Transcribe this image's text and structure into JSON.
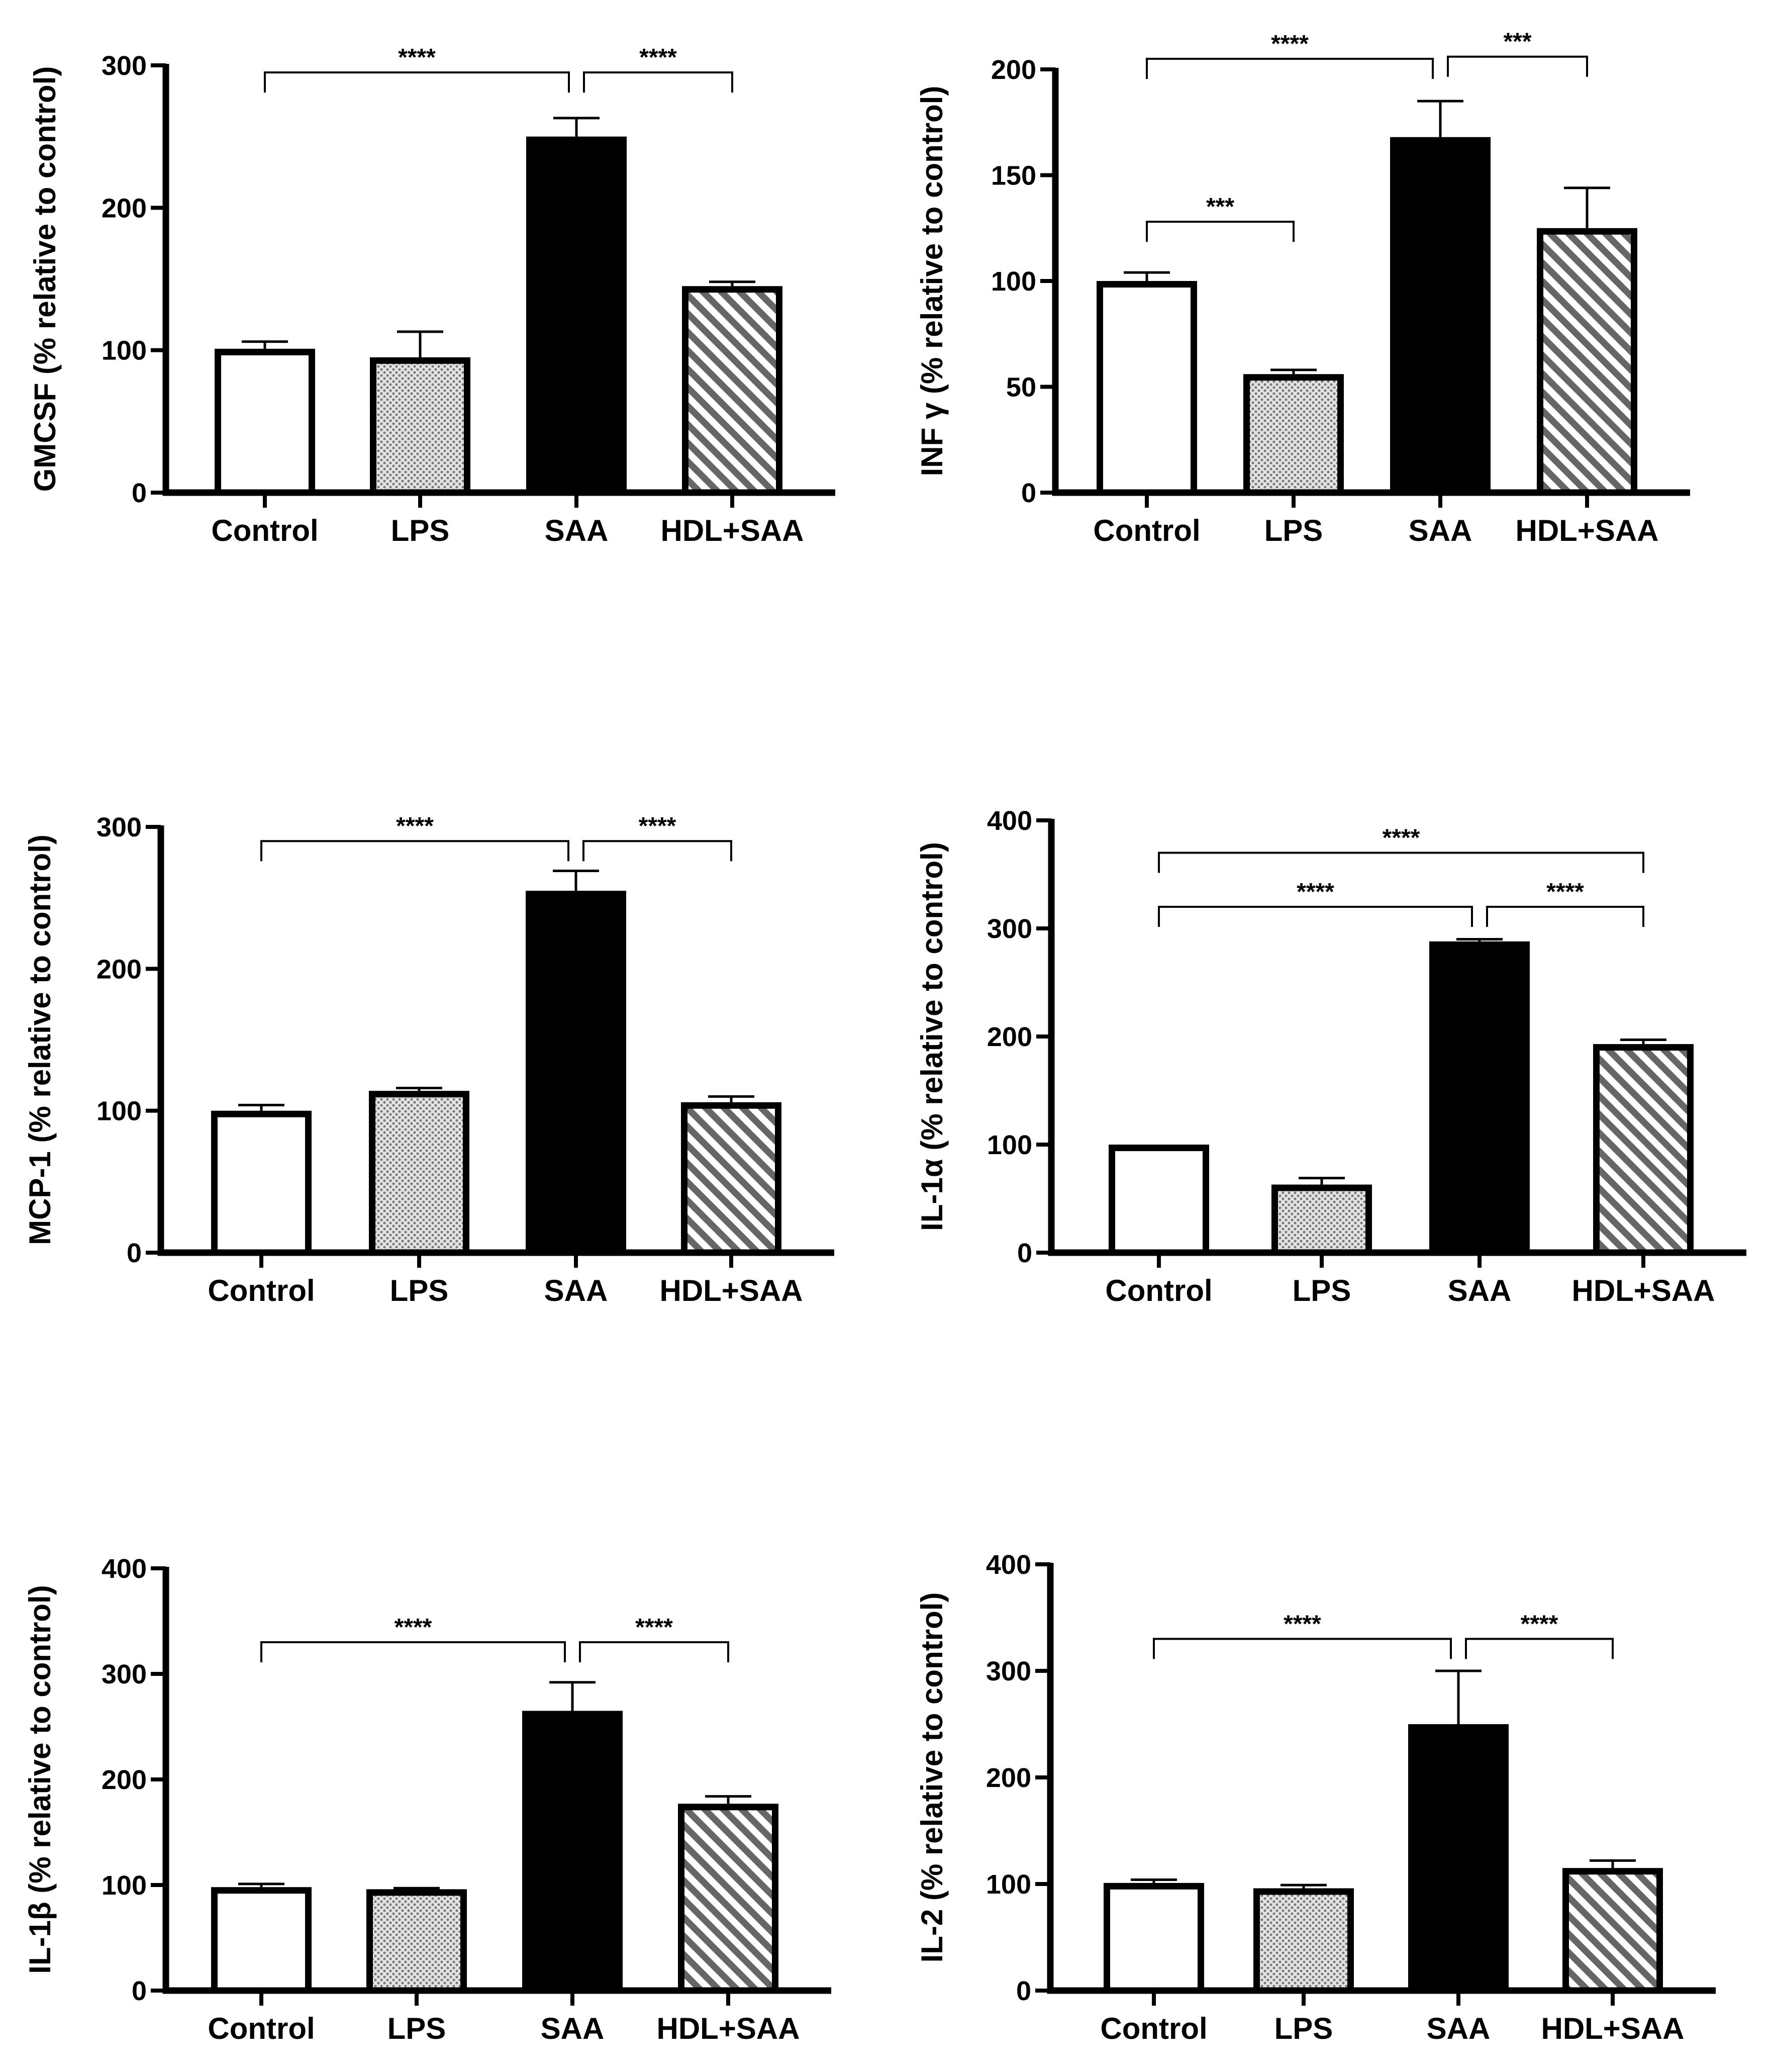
{
  "chart_data": [
    {
      "type": "bar",
      "ylabel": "GMCSF (% relative to control)",
      "ylim": [
        0,
        300
      ],
      "yticks": [
        0,
        100,
        200,
        300
      ],
      "categories": [
        "Control",
        "LPS",
        "SAA",
        "HDL+SAA"
      ],
      "values": [
        101,
        95,
        250,
        145
      ],
      "errors": [
        5,
        18,
        13,
        3
      ],
      "fills": [
        "white",
        "dots",
        "solid",
        "hatch"
      ],
      "significance": [
        {
          "from": 0,
          "to": 2,
          "label": "****",
          "y": 295
        },
        {
          "from": 2,
          "to": 3,
          "label": "****",
          "y": 295
        }
      ]
    },
    {
      "type": "bar",
      "ylabel": "INF γ (% relative to control)",
      "ylim": [
        0,
        200
      ],
      "yticks": [
        0,
        50,
        100,
        150,
        200
      ],
      "categories": [
        "Control",
        "LPS",
        "SAA",
        "HDL+SAA"
      ],
      "values": [
        100,
        56,
        168,
        125
      ],
      "errors": [
        4,
        2,
        17,
        19
      ],
      "fills": [
        "white",
        "dots",
        "solid",
        "hatch"
      ],
      "significance": [
        {
          "from": 0,
          "to": 2,
          "label": "****",
          "y": 205
        },
        {
          "from": 2,
          "to": 3,
          "label": "***",
          "y": 206
        },
        {
          "from": 0,
          "to": 1,
          "label": "***",
          "y": 128
        }
      ]
    },
    {
      "type": "bar",
      "ylabel": "MCP-1 (% relative to control)",
      "ylim": [
        0,
        300
      ],
      "yticks": [
        0,
        100,
        200,
        300
      ],
      "categories": [
        "Control",
        "LPS",
        "SAA",
        "HDL+SAA"
      ],
      "values": [
        100,
        114,
        255,
        106
      ],
      "errors": [
        4,
        2,
        14,
        4
      ],
      "fills": [
        "white",
        "dots",
        "solid",
        "hatch"
      ],
      "significance": [
        {
          "from": 0,
          "to": 2,
          "label": "****",
          "y": 290
        },
        {
          "from": 2,
          "to": 3,
          "label": "****",
          "y": 290
        }
      ]
    },
    {
      "type": "bar",
      "ylabel": "IL-1α (% relative to control)",
      "ylim": [
        0,
        400
      ],
      "yticks": [
        0,
        100,
        200,
        300,
        400
      ],
      "categories": [
        "Control",
        "LPS",
        "SAA",
        "HDL+SAA"
      ],
      "values": [
        100,
        63,
        288,
        193
      ],
      "errors": [
        0,
        6,
        2,
        4
      ],
      "fills": [
        "white",
        "dots",
        "solid",
        "hatch"
      ],
      "significance": [
        {
          "from": 0,
          "to": 3,
          "label": "****",
          "y": 370
        },
        {
          "from": 0,
          "to": 2,
          "label": "****",
          "y": 320
        },
        {
          "from": 2,
          "to": 3,
          "label": "****",
          "y": 320
        }
      ]
    },
    {
      "type": "bar",
      "ylabel": "IL-1β (% relative to control)",
      "ylim": [
        0,
        400
      ],
      "yticks": [
        0,
        100,
        200,
        300,
        400
      ],
      "categories": [
        "Control",
        "LPS",
        "SAA",
        "HDL+SAA"
      ],
      "values": [
        98,
        96,
        265,
        177
      ],
      "errors": [
        3,
        1,
        27,
        7
      ],
      "fills": [
        "white",
        "dots",
        "solid",
        "hatch"
      ],
      "significance": [
        {
          "from": 0,
          "to": 2,
          "label": "****",
          "y": 330
        },
        {
          "from": 2,
          "to": 3,
          "label": "****",
          "y": 330
        }
      ]
    },
    {
      "type": "bar",
      "ylabel": "IL-2 (% relative to control)",
      "ylim": [
        0,
        400
      ],
      "yticks": [
        0,
        100,
        200,
        300,
        400
      ],
      "categories": [
        "Control",
        "LPS",
        "SAA",
        "HDL+SAA"
      ],
      "values": [
        101,
        96,
        250,
        115
      ],
      "errors": [
        3,
        3,
        50,
        7
      ],
      "fills": [
        "white",
        "dots",
        "solid",
        "hatch"
      ],
      "significance": [
        {
          "from": 0,
          "to": 2,
          "label": "****",
          "y": 330
        },
        {
          "from": 2,
          "to": 3,
          "label": "****",
          "y": 330
        }
      ]
    }
  ]
}
